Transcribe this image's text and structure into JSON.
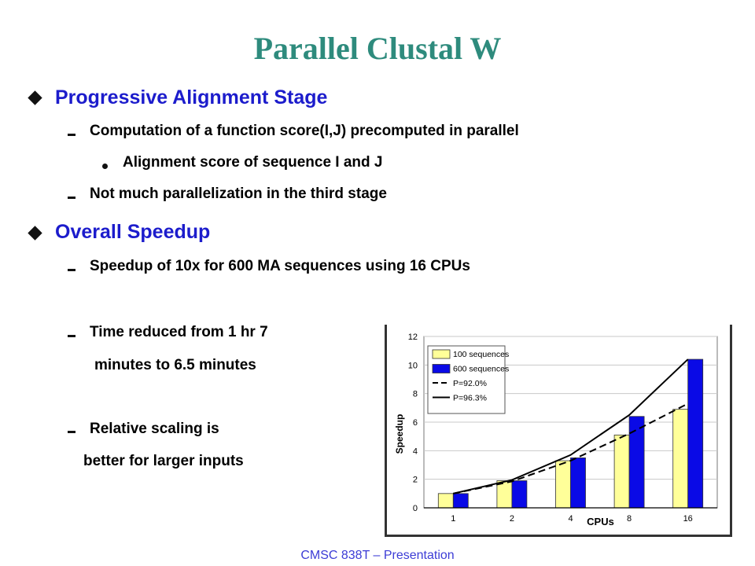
{
  "slide": {
    "title": "Parallel Clustal W",
    "sections": [
      {
        "heading": "Progressive Alignment Stage",
        "items": [
          "Computation of a function score(I,J) precomputed in parallel",
          "Alignment score of sequence I and J",
          "Not much parallelization in the third stage"
        ]
      },
      {
        "heading": "Overall Speedup",
        "items": [
          "Speedup of 10x for 600 MA sequences using 16 CPUs",
          "Time reduced from 1 hr 7",
          "minutes to 6.5 minutes",
          "Relative scaling is",
          "better for larger inputs"
        ]
      }
    ],
    "footer": "CMSC 838T – Presentation"
  },
  "chart_data": {
    "type": "bar",
    "categories": [
      "1",
      "2",
      "4",
      "8",
      "16"
    ],
    "xlabel": "CPUs",
    "ylabel": "Speedup",
    "ylim": [
      0,
      12
    ],
    "yticks": [
      "0",
      "2",
      "4",
      "6",
      "8",
      "10",
      "12"
    ],
    "series": [
      {
        "name": "100 sequences",
        "kind": "bar",
        "color": "#ffff99",
        "values": [
          1.0,
          1.9,
          3.3,
          5.1,
          6.9
        ]
      },
      {
        "name": "600 sequences",
        "kind": "bar",
        "color": "#0a0ae6",
        "values": [
          1.0,
          1.9,
          3.5,
          6.4,
          10.4
        ]
      },
      {
        "name": "P=92.0%",
        "kind": "line",
        "style": "dashed",
        "color": "#000000",
        "values": [
          1.0,
          1.85,
          3.3,
          5.2,
          7.3
        ]
      },
      {
        "name": "P=96.3%",
        "kind": "line",
        "style": "solid",
        "color": "#000000",
        "values": [
          1.0,
          1.95,
          3.7,
          6.5,
          10.4
        ]
      }
    ],
    "legend_position": "top-left"
  }
}
